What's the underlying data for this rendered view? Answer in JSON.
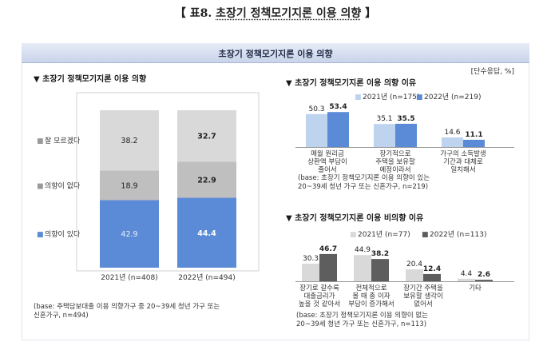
{
  "page_title_prefix": "【 표8. ",
  "page_title_main": "초장기 정책모기지론 이용 의향",
  "page_title_suffix": " 】",
  "banner_title": "초장기 정책모기지론 이용 의향",
  "unit_note": "[단수응답, %]",
  "colors": {
    "blue": "#5b8bd6",
    "light_blue": "#bed3ee",
    "light_gray": "#d9d9d9",
    "mid_gray": "#bfbfbf",
    "dark_gray": "#5e5e5e",
    "marker": "#1f3864"
  },
  "chart_data": [
    {
      "type": "bar",
      "stacked": true,
      "title": "▼ 초장기 정책모기지론 이용 의향",
      "categories": [
        "2021년 (n=408)",
        "2022년 (n=494)"
      ],
      "series": [
        {
          "name": "의향이 있다",
          "values": [
            42.9,
            44.4
          ]
        },
        {
          "name": "의향이 없다",
          "values": [
            18.9,
            22.9
          ]
        },
        {
          "name": "잘 모르겠다",
          "values": [
            38.2,
            32.7
          ]
        }
      ],
      "legend_markers": [
        "■",
        "■",
        "■"
      ],
      "ylim": [
        0,
        100
      ],
      "legend_position": "left",
      "base_note": "(base: 주택담보대출 이용 의향가구 중 20~39세 청년 가구 또는 신혼가구, n=494)"
    },
    {
      "type": "bar",
      "title": "▼ 초장기 정책모기지론 이용 의향 이유",
      "categories": [
        "매월 원리금 상환액 부담이 줄어서",
        "장기적으로 주택을 보유할 예정이라서",
        "가구의 소득발생 기간과 대체로 일치해서"
      ],
      "category_lines": [
        [
          "매월 원리금",
          "상환액 부담이",
          "줄어서"
        ],
        [
          "장기적으로",
          "주택을 보유할",
          "예정이라서"
        ],
        [
          "가구의 소득발생",
          "기간과 대체로",
          "일치해서"
        ]
      ],
      "series": [
        {
          "name": "2021년 (n=175)",
          "values": [
            50.3,
            35.1,
            14.6
          ]
        },
        {
          "name": "2022년 (n=219)",
          "values": [
            53.4,
            35.5,
            11.1
          ]
        }
      ],
      "legend_markers": [
        "■",
        "■"
      ],
      "legend_position": "top",
      "base_note": "(base: 초장기 정책모기지론 이용 의향이 있는 20~39세 청년 가구 또는 신혼가구, n=219)"
    },
    {
      "type": "bar",
      "title": "▼ 초장기 정책모기지론 이용 비의향 이유",
      "categories": [
        "장기로 갈수록 대출금리가 높을 것 같아서",
        "전체적으로 볼 때 총 이자 부담이 증가해서",
        "장기간 주택을 보유할 생각이 없어서",
        "기타"
      ],
      "category_lines": [
        [
          "장기로 갈수록",
          "대출금리가",
          "높을 것 같아서"
        ],
        [
          "전체적으로",
          "볼 때 총 이자",
          "부담이 증가해서"
        ],
        [
          "장기간 주택을",
          "보유할 생각이",
          "없어서"
        ],
        [
          "기타"
        ]
      ],
      "series": [
        {
          "name": "2021년 (n=77)",
          "values": [
            30.3,
            44.9,
            20.4,
            4.4
          ]
        },
        {
          "name": "2022년 (n=113)",
          "values": [
            46.7,
            38.2,
            12.4,
            2.6
          ]
        }
      ],
      "legend_markers": [
        "■",
        "■"
      ],
      "legend_position": "top",
      "base_note": "(base: 초장기 정책모기지론 이용 의향이 없는 20~39세 청년 가구 또는 신혼가구, n=113)"
    }
  ]
}
